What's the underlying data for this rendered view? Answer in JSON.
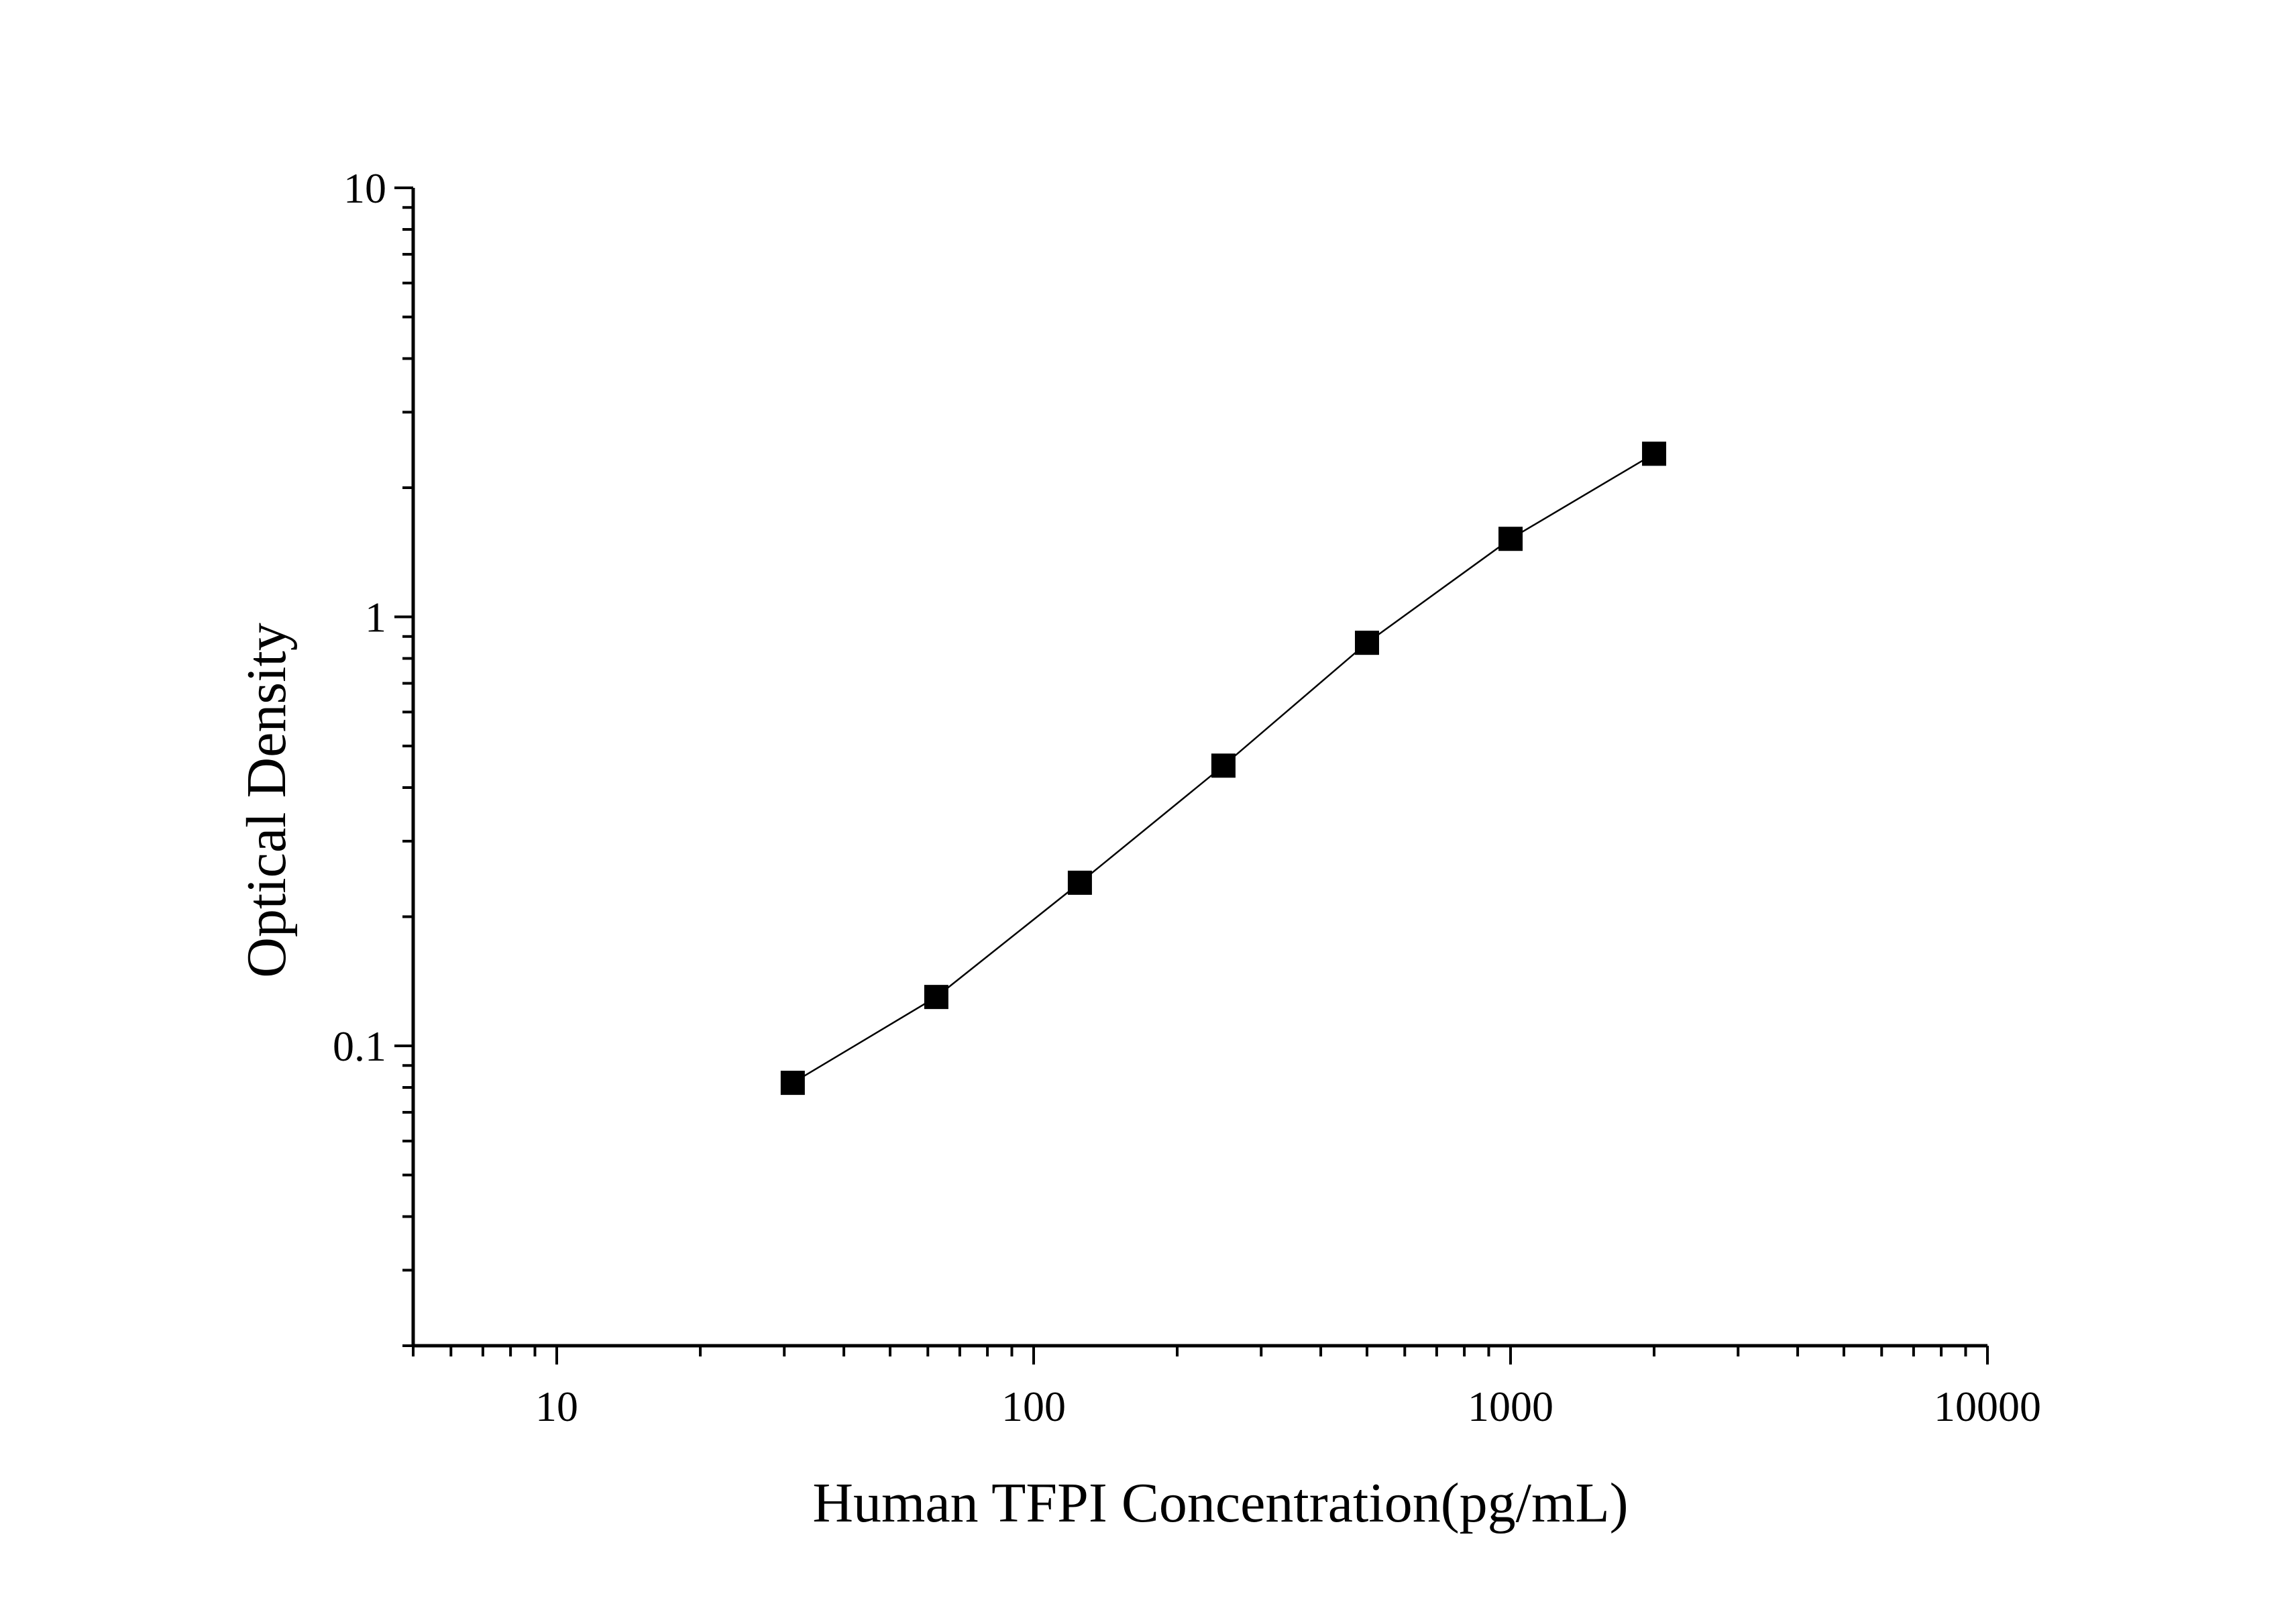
{
  "chart_data": {
    "type": "line",
    "xlabel": "Human TFPI Concentration(pg/mL)",
    "ylabel": "Optical Density",
    "x_scale": "log",
    "y_scale": "log",
    "xlim": [
      5,
      10000
    ],
    "ylim": [
      0.02,
      10
    ],
    "x_ticks": [
      {
        "value": 10,
        "label": "10"
      },
      {
        "value": 100,
        "label": "100"
      },
      {
        "value": 1000,
        "label": "1000"
      },
      {
        "value": 10000,
        "label": "10000"
      }
    ],
    "y_ticks": [
      {
        "value": 0.1,
        "label": "0.1"
      },
      {
        "value": 1,
        "label": "1"
      },
      {
        "value": 10,
        "label": "10"
      }
    ],
    "grid": false,
    "legend": "none",
    "series": [
      {
        "marker": "square",
        "color": "#000000",
        "x": [
          31.25,
          62.5,
          125,
          250,
          500,
          1000,
          2000
        ],
        "y": [
          0.082,
          0.13,
          0.24,
          0.45,
          0.87,
          1.52,
          2.4
        ]
      }
    ]
  }
}
